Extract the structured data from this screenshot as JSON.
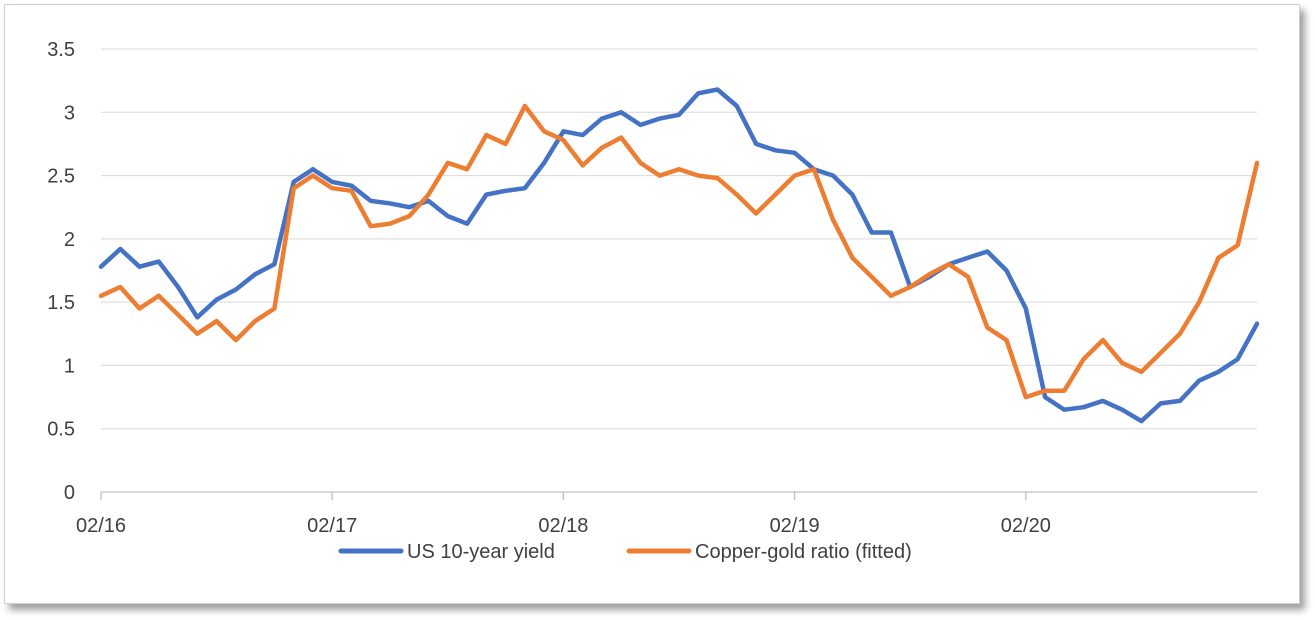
{
  "chart_data": {
    "type": "line",
    "title": "",
    "xlabel": "",
    "ylabel": "",
    "ylim": [
      0,
      3.5
    ],
    "y_ticks": [
      "0",
      "0.5",
      "1",
      "1.5",
      "2",
      "2.5",
      "3",
      "3.5"
    ],
    "x_ticks": [
      "02/16",
      "02/17",
      "02/18",
      "02/19",
      "02/20"
    ],
    "x_range": [
      "2016-02",
      "2021-02"
    ],
    "grid": "horizontal",
    "legend_position": "bottom",
    "colors": {
      "US 10-year yield": "#4472c4",
      "Copper-gold ratio (fitted)": "#ed7d31"
    },
    "x": [
      "2016-02",
      "2016-03",
      "2016-04",
      "2016-05",
      "2016-06",
      "2016-07",
      "2016-08",
      "2016-09",
      "2016-10",
      "2016-11",
      "2016-12",
      "2017-01",
      "2017-02",
      "2017-03",
      "2017-04",
      "2017-05",
      "2017-06",
      "2017-07",
      "2017-08",
      "2017-09",
      "2017-10",
      "2017-11",
      "2017-12",
      "2018-01",
      "2018-02",
      "2018-03",
      "2018-04",
      "2018-05",
      "2018-06",
      "2018-07",
      "2018-08",
      "2018-09",
      "2018-10",
      "2018-11",
      "2018-12",
      "2019-01",
      "2019-02",
      "2019-03",
      "2019-04",
      "2019-05",
      "2019-06",
      "2019-07",
      "2019-08",
      "2019-09",
      "2019-10",
      "2019-11",
      "2019-12",
      "2020-01",
      "2020-02",
      "2020-03",
      "2020-04",
      "2020-05",
      "2020-06",
      "2020-07",
      "2020-08",
      "2020-09",
      "2020-10",
      "2020-11",
      "2020-12",
      "2021-01",
      "2021-02"
    ],
    "series": [
      {
        "name": "US 10-year yield",
        "values": [
          1.78,
          1.92,
          1.78,
          1.82,
          1.62,
          1.38,
          1.52,
          1.6,
          1.72,
          1.8,
          2.45,
          2.55,
          2.45,
          2.42,
          2.3,
          2.28,
          2.25,
          2.3,
          2.18,
          2.12,
          2.35,
          2.38,
          2.4,
          2.6,
          2.85,
          2.82,
          2.95,
          3.0,
          2.9,
          2.95,
          2.98,
          3.15,
          3.18,
          3.05,
          2.75,
          2.7,
          2.68,
          2.55,
          2.5,
          2.35,
          2.05,
          2.05,
          1.62,
          1.7,
          1.8,
          1.85,
          1.9,
          1.75,
          1.45,
          0.75,
          0.65,
          0.67,
          0.72,
          0.65,
          0.56,
          0.7,
          0.72,
          0.88,
          0.95,
          1.05,
          1.33
        ]
      },
      {
        "name": "Copper-gold ratio (fitted)",
        "values": [
          1.55,
          1.62,
          1.45,
          1.55,
          1.4,
          1.25,
          1.35,
          1.2,
          1.35,
          1.45,
          2.4,
          2.5,
          2.4,
          2.38,
          2.1,
          2.12,
          2.18,
          2.35,
          2.6,
          2.55,
          2.82,
          2.75,
          3.05,
          2.85,
          2.78,
          2.58,
          2.72,
          2.8,
          2.6,
          2.5,
          2.55,
          2.5,
          2.48,
          2.35,
          2.2,
          2.35,
          2.5,
          2.55,
          2.15,
          1.85,
          1.7,
          1.55,
          1.62,
          1.72,
          1.8,
          1.7,
          1.3,
          1.2,
          0.75,
          0.8,
          0.8,
          1.05,
          1.2,
          1.02,
          0.95,
          1.1,
          1.25,
          1.5,
          1.85,
          1.95,
          2.6
        ]
      }
    ]
  }
}
